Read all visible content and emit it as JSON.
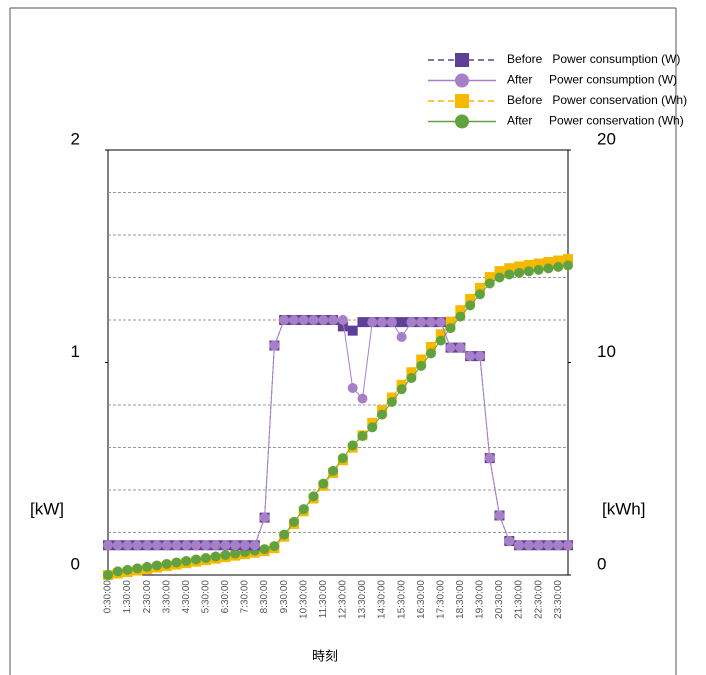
{
  "chart_data": {
    "type": "line",
    "categories": [
      "0:30:00",
      null,
      "1:30:00",
      null,
      "2:30:00",
      null,
      "3:30:00",
      null,
      "4:30:00",
      null,
      "5:30:00",
      null,
      "6:30:00",
      null,
      "7:30:00",
      null,
      "8:30:00",
      null,
      "9:30:00",
      null,
      "10:30:00",
      null,
      "11:30:00",
      null,
      "12:30:00",
      null,
      "13:30:00",
      null,
      "14:30:00",
      null,
      "15:30:00",
      null,
      "16:30:00",
      null,
      "17:30:00",
      null,
      "18:30:00",
      null,
      "19:30:00",
      null,
      "20:30:00",
      null,
      "21:30:00",
      null,
      "22:30:00",
      null,
      "23:30:00",
      null
    ],
    "xlabel": "時刻",
    "ylabel": "[kW]",
    "y2label": "[kWh]",
    "ylim": [
      0,
      2
    ],
    "yticks": [
      0,
      1,
      2
    ],
    "y2lim": [
      0,
      20
    ],
    "y2ticks": [
      0,
      10,
      20
    ],
    "ygrid": [
      0.2,
      0.4,
      0.6,
      0.8,
      1.2,
      1.4,
      1.6,
      1.8
    ],
    "grid": true,
    "legend": "top-right",
    "series": [
      {
        "name": "Before   Power consumption (W)",
        "color": "#5e3f96",
        "marker": "square",
        "line": "dashed",
        "values": [
          0.14,
          0.14,
          0.14,
          0.14,
          0.14,
          0.14,
          0.14,
          0.14,
          0.14,
          0.14,
          0.14,
          0.14,
          0.14,
          0.14,
          0.14,
          0.14,
          0.27,
          1.08,
          1.2,
          1.2,
          1.2,
          1.2,
          1.2,
          1.2,
          1.17,
          1.15,
          1.19,
          1.19,
          1.19,
          1.19,
          1.19,
          1.19,
          1.19,
          1.19,
          1.19,
          1.07,
          1.07,
          1.03,
          1.03,
          0.55,
          0.28,
          0.16,
          0.14,
          0.14,
          0.14,
          0.14,
          0.14,
          0.14
        ]
      },
      {
        "name": "After     Power consumption (W)",
        "color": "#a77fc9",
        "marker": "circle",
        "line": "solid",
        "values": [
          0.14,
          0.14,
          0.14,
          0.14,
          0.14,
          0.14,
          0.14,
          0.14,
          0.14,
          0.14,
          0.14,
          0.14,
          0.14,
          0.14,
          0.14,
          0.14,
          0.27,
          1.08,
          1.2,
          1.2,
          1.2,
          1.2,
          1.2,
          1.2,
          1.2,
          0.88,
          0.83,
          1.19,
          1.19,
          1.19,
          1.12,
          1.19,
          1.19,
          1.19,
          1.19,
          1.07,
          1.07,
          1.03,
          1.03,
          0.55,
          0.28,
          0.16,
          0.14,
          0.14,
          0.14,
          0.14,
          0.14,
          0.14
        ]
      },
      {
        "name": "Before   Power conservation (Wh)",
        "color": "#f7b900",
        "marker": "square",
        "line": "dashed",
        "axis": "y2",
        "values": [
          0,
          0.07,
          0.14,
          0.21,
          0.28,
          0.35,
          0.42,
          0.49,
          0.56,
          0.63,
          0.7,
          0.77,
          0.84,
          0.91,
          0.98,
          1.05,
          1.12,
          1.26,
          1.8,
          2.4,
          3.0,
          3.6,
          4.2,
          4.8,
          5.4,
          5.99,
          6.57,
          7.16,
          7.76,
          8.35,
          8.95,
          9.54,
          10.14,
          10.73,
          11.33,
          11.92,
          12.46,
          12.99,
          13.51,
          14.02,
          14.3,
          14.44,
          14.52,
          14.59,
          14.66,
          14.73,
          14.8,
          14.87
        ]
      },
      {
        "name": "After     Power conservation (Wh)",
        "color": "#62a23e",
        "marker": "circle",
        "line": "solid",
        "axis": "y2",
        "values": [
          0,
          0.17,
          0.24,
          0.31,
          0.38,
          0.45,
          0.52,
          0.59,
          0.66,
          0.73,
          0.8,
          0.87,
          0.94,
          1.01,
          1.08,
          1.15,
          1.22,
          1.36,
          1.9,
          2.5,
          3.1,
          3.7,
          4.3,
          4.9,
          5.5,
          6.1,
          6.54,
          6.95,
          7.55,
          8.14,
          8.74,
          9.27,
          9.84,
          10.43,
          11.03,
          11.62,
          12.16,
          12.69,
          13.21,
          13.72,
          14.0,
          14.14,
          14.22,
          14.29,
          14.36,
          14.43,
          14.5,
          14.57
        ]
      }
    ]
  }
}
